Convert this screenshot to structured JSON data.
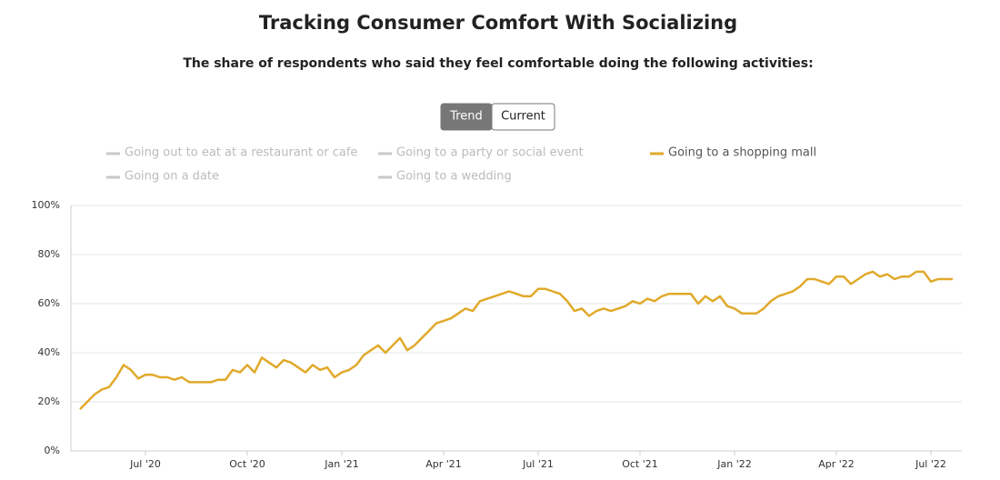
{
  "chart_data": {
    "type": "line",
    "title": "Tracking Consumer Comfort With Socializing",
    "subtitle": "The share of respondents who said they feel comfortable doing the following activities:",
    "view_toggle": {
      "options": [
        "Trend",
        "Current"
      ],
      "selected": 0
    },
    "hidden_color": "#c8c8c8",
    "series": [
      {
        "name": "Going out to eat at a restaurant or cafe",
        "visible": false
      },
      {
        "name": "Going to a party or social event",
        "visible": false
      },
      {
        "name": "Going to a shopping mall",
        "visible": true,
        "color": "#e0a92a",
        "values": [
          17,
          20,
          23,
          25,
          26,
          30,
          35,
          33,
          29.5,
          31,
          31,
          30,
          30,
          29,
          30,
          28,
          28,
          28,
          28,
          29,
          29,
          33,
          32,
          35,
          32,
          38,
          36,
          34,
          37,
          36,
          34,
          32,
          35,
          33,
          34,
          30,
          32,
          33,
          35,
          39,
          41,
          43,
          40,
          43,
          46,
          41,
          43,
          46,
          49,
          52,
          53,
          54,
          56,
          58,
          57,
          61,
          62,
          63,
          64,
          65,
          64,
          63,
          63,
          66,
          66,
          65,
          64,
          61,
          57,
          58,
          55,
          57,
          58,
          57,
          58,
          59,
          61,
          60,
          62,
          61,
          63,
          64,
          64,
          64,
          64,
          60,
          63,
          61,
          63,
          59,
          58,
          56,
          56,
          56,
          58,
          61,
          63,
          64,
          65,
          67,
          70,
          70,
          69,
          68,
          71,
          71,
          68,
          70,
          72,
          73,
          71,
          72,
          70,
          71,
          71,
          73,
          73,
          69,
          70,
          70,
          70
        ]
      },
      {
        "name": "Going on a date",
        "visible": false
      },
      {
        "name": "Going to a wedding",
        "visible": false
      }
    ],
    "xlim": [
      0,
      120
    ],
    "xticks": [
      {
        "value": 9,
        "label": "Jul '20"
      },
      {
        "value": 23,
        "label": "Oct '20"
      },
      {
        "value": 36,
        "label": "Jan '21"
      },
      {
        "value": 50,
        "label": "Apr '21"
      },
      {
        "value": 63,
        "label": "Jul '21"
      },
      {
        "value": 77,
        "label": "Oct '21"
      },
      {
        "value": 90,
        "label": "Jan '22"
      },
      {
        "value": 104,
        "label": "Apr '22"
      },
      {
        "value": 117,
        "label": "Jul '22"
      }
    ],
    "ylim": [
      0,
      100
    ],
    "yticks": [
      {
        "value": 0,
        "label": "0%"
      },
      {
        "value": 20,
        "label": "20%"
      },
      {
        "value": 40,
        "label": "40%"
      },
      {
        "value": 60,
        "label": "60%"
      },
      {
        "value": 80,
        "label": "80%"
      },
      {
        "value": 100,
        "label": "100%"
      }
    ],
    "grid": true
  }
}
